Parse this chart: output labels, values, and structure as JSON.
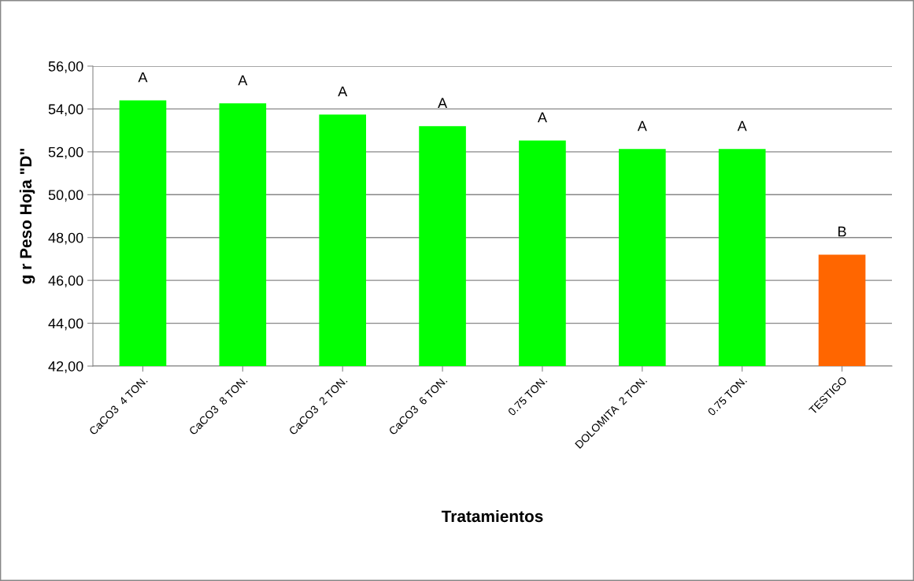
{
  "chart_data": {
    "type": "bar",
    "xlabel": "Tratamientos",
    "ylabel": "g r Peso Hoja \"D\"",
    "categories": [
      "CaCO3  4 TON.",
      "CaCO3  8 TON.",
      "CaCO3  2 TON.",
      "CaCO3  6 TON.",
      "0.75 TON.",
      "DOLOMITA  2 TON.",
      "0.75 TON.",
      "TESTIGO"
    ],
    "values": [
      54.4,
      54.26,
      53.74,
      53.2,
      52.53,
      52.13,
      52.13,
      47.2
    ],
    "colors": [
      "#00ff00",
      "#00ff00",
      "#00ff00",
      "#00ff00",
      "#00ff00",
      "#00ff00",
      "#00ff00",
      "#ff6600"
    ],
    "value_labels": [
      "A",
      "A",
      "A",
      "A",
      "A",
      "A",
      "A",
      "B"
    ],
    "ylim": [
      42,
      56
    ],
    "yticks": [
      {
        "value": 42,
        "label": "42,00"
      },
      {
        "value": 44,
        "label": "44,00"
      },
      {
        "value": 46,
        "label": "46,00"
      },
      {
        "value": 48,
        "label": "48,00"
      },
      {
        "value": 50,
        "label": "50,00"
      },
      {
        "value": 52,
        "label": "52,00"
      },
      {
        "value": 54,
        "label": "54,00"
      },
      {
        "value": 56,
        "label": "56,00"
      }
    ],
    "grid": "y",
    "legend": false
  }
}
